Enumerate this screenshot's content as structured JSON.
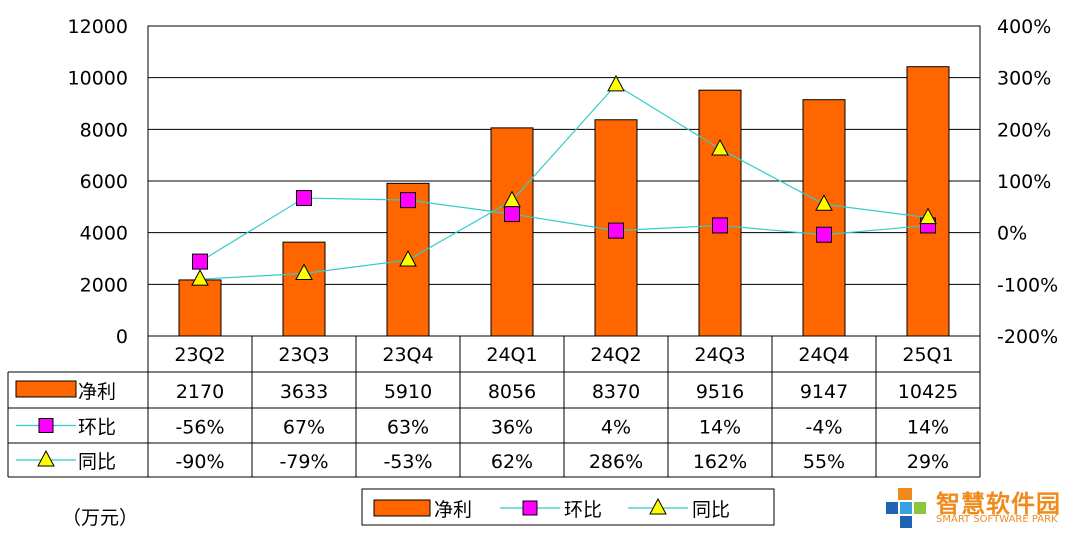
{
  "chart_data": {
    "type": "bar",
    "categories": [
      "23Q2",
      "23Q3",
      "23Q4",
      "24Q1",
      "24Q2",
      "24Q3",
      "24Q4",
      "25Q1"
    ],
    "series": [
      {
        "name": "净利",
        "kind": "bar",
        "axis": "left",
        "values": [
          2170,
          3633,
          5910,
          8056,
          8370,
          9516,
          9147,
          10425
        ],
        "labels": [
          "2170",
          "3633",
          "5910",
          "8056",
          "8370",
          "9516",
          "9147",
          "10425"
        ],
        "color": "#ff6600"
      },
      {
        "name": "环比",
        "kind": "line",
        "axis": "right",
        "marker": "square",
        "values": [
          -56,
          67,
          63,
          36,
          4,
          14,
          -4,
          14
        ],
        "labels": [
          "-56%",
          "67%",
          "63%",
          "36%",
          "4%",
          "14%",
          "-4%",
          "14%"
        ],
        "color": "#ff00ff",
        "line_color": "#33cccc"
      },
      {
        "name": "同比",
        "kind": "line",
        "axis": "right",
        "marker": "triangle",
        "values": [
          -90,
          -79,
          -53,
          62,
          286,
          162,
          55,
          29
        ],
        "labels": [
          "-90%",
          "-79%",
          "-53%",
          "62%",
          "286%",
          "162%",
          "55%",
          "29%"
        ],
        "color": "#ffff00",
        "line_color": "#33cccc"
      }
    ],
    "y_left": {
      "lim": [
        0,
        12000
      ],
      "ticks": [
        "0",
        "2000",
        "4000",
        "6000",
        "8000",
        "10000",
        "12000"
      ]
    },
    "y_right": {
      "lim": [
        -200,
        400
      ],
      "ticks": [
        "-200%",
        "-100%",
        "0%",
        "100%",
        "200%",
        "300%",
        "400%"
      ]
    },
    "grid": true,
    "legend": "bottom-center",
    "data_table": true,
    "unit_label": "（万元）"
  },
  "logo": {
    "title": "智慧软件园",
    "subtitle": "SMART SOFTWARE PARK"
  }
}
